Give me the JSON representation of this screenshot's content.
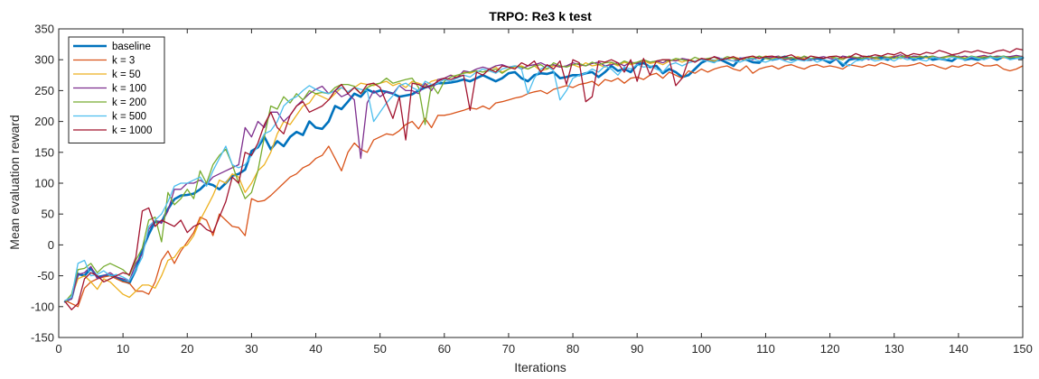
{
  "chart_data": {
    "type": "line",
    "title": "TRPO: Re3 k test",
    "xlabel": "Iterations",
    "ylabel": "Mean evaluation reward",
    "xlim": [
      0,
      150
    ],
    "ylim": [
      -150,
      350
    ],
    "xticks": [
      0,
      10,
      20,
      30,
      40,
      50,
      60,
      70,
      80,
      90,
      100,
      110,
      120,
      130,
      140,
      150
    ],
    "yticks": [
      -150,
      -100,
      -50,
      0,
      50,
      100,
      150,
      200,
      250,
      300,
      350
    ],
    "grid": false,
    "legend_position": "top-left",
    "x": [
      1,
      2,
      3,
      4,
      5,
      6,
      7,
      8,
      9,
      10,
      11,
      12,
      13,
      14,
      15,
      16,
      17,
      18,
      19,
      20,
      21,
      22,
      23,
      24,
      25,
      26,
      27,
      28,
      29,
      30,
      31,
      32,
      33,
      34,
      35,
      36,
      37,
      38,
      39,
      40,
      41,
      42,
      43,
      44,
      45,
      46,
      47,
      48,
      49,
      50,
      51,
      52,
      53,
      54,
      55,
      56,
      57,
      58,
      59,
      60,
      61,
      62,
      63,
      64,
      65,
      66,
      67,
      68,
      69,
      70,
      71,
      72,
      73,
      74,
      75,
      76,
      77,
      78,
      79,
      80,
      81,
      82,
      83,
      84,
      85,
      86,
      87,
      88,
      89,
      90,
      91,
      92,
      93,
      94,
      95,
      96,
      97,
      98,
      99,
      100,
      101,
      102,
      103,
      104,
      105,
      106,
      107,
      108,
      109,
      110,
      111,
      112,
      113,
      114,
      115,
      116,
      117,
      118,
      119,
      120,
      121,
      122,
      123,
      124,
      125,
      126,
      127,
      128,
      129,
      130,
      131,
      132,
      133,
      134,
      135,
      136,
      137,
      138,
      139,
      140,
      141,
      142,
      143,
      144,
      145,
      146,
      147,
      148,
      149,
      150
    ],
    "series": [
      {
        "name": "baseline",
        "color": "#0072BD",
        "width": 2.6,
        "values": [
          -92,
          -86,
          -47,
          -50,
          -38,
          -52,
          -50,
          -49,
          -54,
          -58,
          -62,
          -40,
          -8,
          17,
          38,
          37,
          58,
          74,
          80,
          81,
          83,
          90,
          100,
          97,
          90,
          100,
          112,
          115,
          122,
          152,
          158,
          175,
          155,
          168,
          160,
          175,
          183,
          178,
          200,
          190,
          188,
          200,
          225,
          220,
          232,
          245,
          240,
          252,
          247,
          250,
          248,
          245,
          240,
          242,
          244,
          250,
          255,
          258,
          262,
          262,
          263,
          265,
          268,
          265,
          270,
          275,
          270,
          265,
          270,
          278,
          280,
          270,
          265,
          275,
          278,
          277,
          280,
          270,
          272,
          275,
          275,
          278,
          280,
          272,
          280,
          290,
          282,
          285,
          280,
          292,
          295,
          288,
          290,
          278,
          285,
          280,
          272,
          275,
          285,
          295,
          300,
          298,
          300,
          295,
          290,
          302,
          300,
          296,
          295,
          305,
          300,
          302,
          305,
          300,
          302,
          300,
          300,
          302,
          300,
          295,
          302,
          290,
          300,
          302,
          300,
          305,
          302,
          303,
          300,
          305,
          303,
          305,
          300,
          302,
          305,
          300,
          302,
          300,
          298,
          305,
          300,
          302,
          300,
          303,
          305,
          300,
          305,
          302,
          303,
          303
        ]
      },
      {
        "name": "k = 3",
        "color": "#D95319",
        "width": 1.3,
        "values": [
          -90,
          -95,
          -100,
          -70,
          -60,
          -55,
          -52,
          -50,
          -55,
          -60,
          -62,
          -75,
          -75,
          -80,
          -60,
          -25,
          -10,
          -30,
          -10,
          5,
          20,
          45,
          40,
          15,
          50,
          40,
          30,
          28,
          15,
          75,
          70,
          72,
          80,
          90,
          100,
          110,
          115,
          125,
          130,
          140,
          145,
          160,
          140,
          120,
          150,
          165,
          155,
          150,
          170,
          175,
          180,
          178,
          185,
          195,
          200,
          188,
          205,
          190,
          210,
          210,
          212,
          215,
          218,
          222,
          220,
          225,
          220,
          230,
          232,
          235,
          238,
          240,
          245,
          248,
          250,
          245,
          252,
          255,
          258,
          255,
          260,
          262,
          265,
          258,
          268,
          265,
          270,
          262,
          270,
          272,
          268,
          275,
          278,
          270,
          280,
          275,
          270,
          282,
          278,
          285,
          280,
          285,
          288,
          290,
          285,
          282,
          290,
          278,
          285,
          288,
          290,
          285,
          290,
          292,
          288,
          285,
          290,
          292,
          288,
          290,
          288,
          285,
          292,
          290,
          288,
          292,
          290,
          295,
          292,
          288,
          290,
          290,
          292,
          295,
          290,
          292,
          288,
          285,
          290,
          288,
          292,
          290,
          295,
          290,
          290,
          292,
          285,
          282,
          285,
          290
        ]
      },
      {
        "name": "k = 50",
        "color": "#EDB120",
        "width": 1.3,
        "values": [
          -92,
          -85,
          -55,
          -50,
          -60,
          -72,
          -55,
          -60,
          -70,
          -80,
          -85,
          -75,
          -65,
          -65,
          -70,
          -50,
          -25,
          -20,
          -5,
          0,
          15,
          40,
          60,
          80,
          105,
          100,
          115,
          110,
          85,
          100,
          120,
          130,
          150,
          180,
          200,
          195,
          210,
          225,
          230,
          245,
          240,
          235,
          245,
          255,
          248,
          255,
          262,
          260,
          258,
          262,
          265,
          258,
          262,
          255,
          265,
          262,
          258,
          265,
          268,
          270,
          275,
          272,
          280,
          278,
          282,
          280,
          285,
          288,
          280,
          285,
          288,
          290,
          285,
          290,
          282,
          285,
          290,
          288,
          290,
          292,
          288,
          295,
          290,
          292,
          288,
          295,
          290,
          296,
          292,
          295,
          298,
          294,
          296,
          292,
          298,
          300,
          296,
          300,
          298,
          302,
          300,
          298,
          302,
          300,
          304,
          302,
          300,
          304,
          302,
          306,
          302,
          305,
          300,
          302,
          305,
          302,
          300,
          304,
          302,
          305,
          300,
          303,
          305,
          302,
          306,
          304,
          302,
          300,
          304,
          306,
          302,
          305,
          304,
          306,
          303,
          305,
          302,
          304,
          306,
          305,
          303,
          305,
          302,
          306,
          304,
          305,
          303,
          305,
          304,
          306
        ]
      },
      {
        "name": "k = 100",
        "color": "#7E2F8E",
        "width": 1.3,
        "values": [
          -90,
          -88,
          -48,
          -45,
          -35,
          -55,
          -50,
          -45,
          -52,
          -55,
          -58,
          -30,
          -15,
          25,
          40,
          35,
          55,
          90,
          90,
          100,
          100,
          105,
          98,
          110,
          115,
          120,
          125,
          130,
          190,
          175,
          200,
          190,
          215,
          215,
          200,
          210,
          225,
          235,
          245,
          252,
          257,
          245,
          250,
          240,
          245,
          235,
          140,
          230,
          250,
          240,
          248,
          245,
          258,
          250,
          250,
          245,
          262,
          250,
          268,
          270,
          275,
          270,
          282,
          280,
          285,
          288,
          285,
          290,
          292,
          288,
          290,
          285,
          290,
          292,
          295,
          290,
          292,
          288,
          290,
          295,
          292,
          290,
          294,
          296,
          290,
          292,
          295,
          290,
          296,
          294,
          300,
          296,
          298,
          295,
          300,
          298,
          302,
          300,
          296,
          302,
          300,
          305,
          302,
          300,
          298,
          302,
          304,
          300,
          305,
          302,
          304,
          306,
          300,
          303,
          302,
          305,
          300,
          303,
          305,
          302,
          300,
          306,
          304,
          302,
          305,
          300,
          304,
          306,
          302,
          305,
          308,
          303,
          306,
          305,
          304,
          306,
          303,
          305,
          308,
          304,
          306,
          303,
          305,
          307,
          304,
          306,
          305,
          305,
          307,
          305
        ]
      },
      {
        "name": "k = 200",
        "color": "#77AC30",
        "width": 1.3,
        "values": [
          -92,
          -80,
          -40,
          -38,
          -30,
          -45,
          -35,
          -30,
          -35,
          -40,
          -50,
          -25,
          -5,
          40,
          45,
          5,
          85,
          65,
          75,
          90,
          75,
          120,
          100,
          130,
          145,
          155,
          130,
          100,
          75,
          85,
          120,
          175,
          225,
          220,
          240,
          230,
          245,
          235,
          250,
          245,
          247,
          245,
          255,
          260,
          260,
          257,
          245,
          255,
          260,
          262,
          270,
          262,
          265,
          268,
          270,
          255,
          195,
          260,
          245,
          265,
          272,
          275,
          278,
          280,
          282,
          280,
          282,
          285,
          278,
          285,
          290,
          288,
          285,
          290,
          292,
          285,
          295,
          290,
          288,
          292,
          294,
          290,
          296,
          292,
          295,
          296,
          292,
          298,
          294,
          296,
          300,
          296,
          298,
          300,
          298,
          302,
          300,
          298,
          304,
          300,
          302,
          304,
          300,
          305,
          302,
          300,
          304,
          302,
          306,
          302,
          300,
          305,
          302,
          304,
          300,
          306,
          302,
          304,
          302,
          305,
          303,
          300,
          306,
          304,
          302,
          305,
          303,
          306,
          304,
          302,
          305,
          307,
          303,
          305,
          304,
          306,
          302,
          305,
          306,
          304,
          302,
          306,
          304,
          303,
          305,
          304,
          306,
          303,
          305,
          304
        ]
      },
      {
        "name": "k = 500",
        "color": "#4DBEEE",
        "width": 1.3,
        "values": [
          -90,
          -85,
          -30,
          -25,
          -50,
          -48,
          -42,
          -50,
          -48,
          -52,
          -58,
          -40,
          -20,
          30,
          40,
          50,
          70,
          95,
          100,
          100,
          105,
          110,
          95,
          120,
          140,
          160,
          130,
          125,
          130,
          145,
          160,
          180,
          185,
          200,
          225,
          235,
          240,
          250,
          258,
          252,
          248,
          245,
          250,
          255,
          248,
          255,
          252,
          250,
          200,
          215,
          230,
          242,
          258,
          262,
          255,
          250,
          265,
          260,
          262,
          268,
          265,
          270,
          275,
          272,
          280,
          285,
          282,
          278,
          285,
          288,
          290,
          285,
          245,
          270,
          285,
          290,
          282,
          235,
          250,
          270,
          275,
          278,
          285,
          280,
          290,
          285,
          275,
          288,
          285,
          292,
          288,
          290,
          285,
          280,
          292,
          295,
          290,
          295,
          298,
          300,
          298,
          295,
          302,
          300,
          298,
          296,
          300,
          302,
          298,
          296,
          300,
          302,
          298,
          295,
          300,
          298,
          302,
          296,
          300,
          298,
          302,
          294,
          290,
          298,
          300,
          302,
          298,
          300,
          302,
          298,
          304,
          300,
          302,
          300,
          298,
          304,
          302,
          300,
          304,
          302,
          300,
          305,
          302,
          300,
          304,
          302,
          305,
          300,
          302,
          304
        ]
      },
      {
        "name": "k = 1000",
        "color": "#A2142F",
        "width": 1.3,
        "values": [
          -92,
          -105,
          -95,
          -55,
          -45,
          -50,
          -60,
          -55,
          -50,
          -45,
          -48,
          -20,
          55,
          60,
          30,
          40,
          35,
          30,
          40,
          20,
          30,
          35,
          25,
          20,
          45,
          70,
          110,
          100,
          150,
          145,
          165,
          195,
          215,
          190,
          180,
          210,
          225,
          232,
          215,
          220,
          225,
          235,
          250,
          260,
          245,
          255,
          245,
          260,
          262,
          255,
          230,
          205,
          240,
          170,
          262,
          260,
          255,
          258,
          265,
          270,
          268,
          272,
          275,
          218,
          280,
          275,
          285,
          280,
          290,
          288,
          285,
          295,
          290,
          298,
          280,
          292,
          285,
          298,
          260,
          300,
          295,
          232,
          240,
          298,
          296,
          300,
          295,
          280,
          300,
          265,
          302,
          275,
          298,
          300,
          300,
          258,
          270,
          300,
          296,
          302,
          300,
          305,
          300,
          302,
          305,
          300,
          304,
          306,
          302,
          305,
          306,
          303,
          305,
          308,
          302,
          300,
          306,
          304,
          302,
          305,
          306,
          303,
          304,
          310,
          306,
          305,
          308,
          306,
          310,
          308,
          312,
          306,
          310,
          308,
          312,
          310,
          315,
          312,
          308,
          310,
          314,
          312,
          315,
          312,
          310,
          314,
          316,
          312,
          318,
          316
        ]
      }
    ]
  }
}
